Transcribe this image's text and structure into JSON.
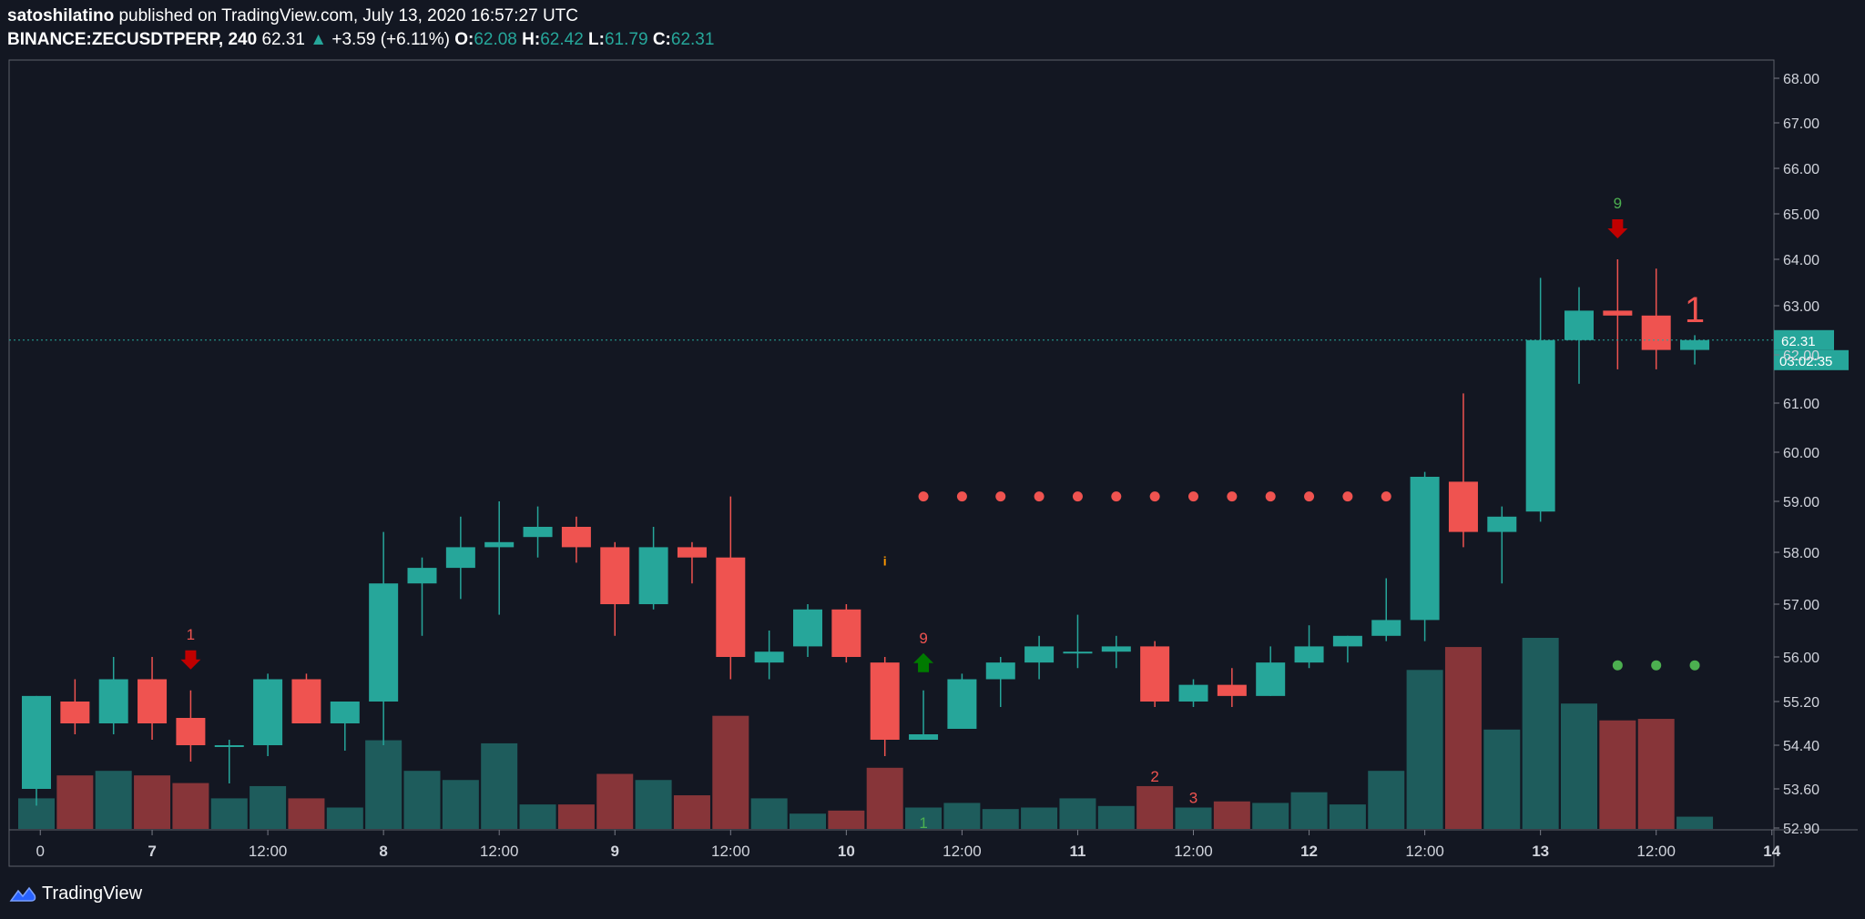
{
  "header": {
    "publisher": "satoshilatino",
    "published_text": "published on TradingView.com, July 13, 2020 16:57:27 UTC",
    "symbol": "BINANCE:ZECUSDTPERP, 240",
    "last": "62.31",
    "change": "+3.59 (+6.11%)",
    "o_label": "O:",
    "o_value": "62.08",
    "h_label": "H:",
    "h_value": "62.42",
    "l_label": "L:",
    "l_value": "61.79",
    "c_label": "C:",
    "c_value": "62.31"
  },
  "colors": {
    "background": "#131722",
    "up": "#26a69a",
    "down": "#ef5350",
    "up_volume": "#1e5c5c",
    "down_volume": "#873539",
    "price_line": "#26a69a",
    "grid_border": "#5d606b",
    "sell_arrow": "#c00000",
    "buy_arrow": "#007a00",
    "td_green": "#4caf50",
    "td_red": "#ef5350",
    "info_marker": "#ff9800"
  },
  "chart_data": {
    "type": "candlestick",
    "timeframe": "240",
    "y_ticks": [
      "68.00",
      "67.00",
      "66.00",
      "65.00",
      "64.00",
      "63.00",
      "62.00",
      "61.00",
      "60.00",
      "59.00",
      "58.00",
      "57.00",
      "56.00",
      "55.20",
      "54.40",
      "53.60",
      "52.90"
    ],
    "x_labels": [
      {
        "label": "0",
        "t": 0.1
      },
      {
        "label": "7",
        "t": 3
      },
      {
        "label": "12:00",
        "t": 6
      },
      {
        "label": "8",
        "t": 9
      },
      {
        "label": "12:00",
        "t": 12
      },
      {
        "label": "9",
        "t": 15
      },
      {
        "label": "12:00",
        "t": 18
      },
      {
        "label": "10",
        "t": 21
      },
      {
        "label": "12:00",
        "t": 24
      },
      {
        "label": "11",
        "t": 27
      },
      {
        "label": "12:00",
        "t": 30
      },
      {
        "label": "12",
        "t": 33
      },
      {
        "label": "12:00",
        "t": 36
      },
      {
        "label": "13",
        "t": 39
      },
      {
        "label": "12:00",
        "t": 42
      },
      {
        "label": "14",
        "t": 45
      }
    ],
    "candles": [
      {
        "t": 0,
        "o": 53.6,
        "h": 55.3,
        "l": 53.3,
        "c": 55.3,
        "v": 20
      },
      {
        "t": 1,
        "o": 55.2,
        "h": 55.6,
        "l": 54.6,
        "c": 54.8,
        "v": 35
      },
      {
        "t": 2,
        "o": 54.8,
        "h": 56.0,
        "l": 54.6,
        "c": 55.6,
        "v": 38
      },
      {
        "t": 3,
        "o": 55.6,
        "h": 56.0,
        "l": 54.5,
        "c": 54.8,
        "v": 35
      },
      {
        "t": 4,
        "o": 54.9,
        "h": 55.4,
        "l": 54.1,
        "c": 54.4,
        "v": 30
      },
      {
        "t": 5,
        "o": 54.4,
        "h": 54.5,
        "l": 53.7,
        "c": 54.4,
        "v": 20
      },
      {
        "t": 6,
        "o": 54.4,
        "h": 55.7,
        "l": 54.2,
        "c": 55.6,
        "v": 28
      },
      {
        "t": 7,
        "o": 55.6,
        "h": 55.7,
        "l": 54.8,
        "c": 54.8,
        "v": 20
      },
      {
        "t": 8,
        "o": 54.8,
        "h": 55.2,
        "l": 54.3,
        "c": 55.2,
        "v": 14
      },
      {
        "t": 9,
        "o": 55.2,
        "h": 58.4,
        "l": 54.4,
        "c": 57.4,
        "v": 58
      },
      {
        "t": 10,
        "o": 57.4,
        "h": 57.9,
        "l": 56.4,
        "c": 57.7,
        "v": 38
      },
      {
        "t": 11,
        "o": 57.7,
        "h": 58.7,
        "l": 57.1,
        "c": 58.1,
        "v": 32
      },
      {
        "t": 12,
        "o": 58.1,
        "h": 59.0,
        "l": 56.8,
        "c": 58.2,
        "v": 56
      },
      {
        "t": 13,
        "o": 58.3,
        "h": 58.9,
        "l": 57.9,
        "c": 58.5,
        "v": 16
      },
      {
        "t": 14,
        "o": 58.5,
        "h": 58.7,
        "l": 57.8,
        "c": 58.1,
        "v": 16
      },
      {
        "t": 15,
        "o": 58.1,
        "h": 58.2,
        "l": 56.4,
        "c": 57.0,
        "v": 36
      },
      {
        "t": 16,
        "o": 57.0,
        "h": 58.5,
        "l": 56.9,
        "c": 58.1,
        "v": 32
      },
      {
        "t": 17,
        "o": 58.1,
        "h": 58.2,
        "l": 57.4,
        "c": 57.9,
        "v": 22
      },
      {
        "t": 18,
        "o": 57.9,
        "h": 59.1,
        "l": 55.6,
        "c": 56.0,
        "v": 74
      },
      {
        "t": 19,
        "o": 55.9,
        "h": 56.5,
        "l": 55.6,
        "c": 56.1,
        "v": 20
      },
      {
        "t": 20,
        "o": 56.2,
        "h": 57.0,
        "l": 56.0,
        "c": 56.9,
        "v": 10
      },
      {
        "t": 21,
        "o": 56.9,
        "h": 57.0,
        "l": 55.9,
        "c": 56.0,
        "v": 12
      },
      {
        "t": 22,
        "o": 55.9,
        "h": 56.0,
        "l": 54.2,
        "c": 54.5,
        "v": 40
      },
      {
        "t": 23,
        "o": 54.5,
        "h": 55.4,
        "l": 54.5,
        "c": 54.6,
        "v": 14
      },
      {
        "t": 24,
        "o": 54.7,
        "h": 55.7,
        "l": 54.7,
        "c": 55.6,
        "v": 17
      },
      {
        "t": 25,
        "o": 55.6,
        "h": 56.0,
        "l": 55.1,
        "c": 55.9,
        "v": 13
      },
      {
        "t": 26,
        "o": 55.9,
        "h": 56.4,
        "l": 55.6,
        "c": 56.2,
        "v": 14
      },
      {
        "t": 27,
        "o": 56.1,
        "h": 56.8,
        "l": 55.8,
        "c": 56.1,
        "v": 20
      },
      {
        "t": 28,
        "o": 56.1,
        "h": 56.4,
        "l": 55.8,
        "c": 56.2,
        "v": 15
      },
      {
        "t": 29,
        "o": 56.2,
        "h": 56.3,
        "l": 55.1,
        "c": 55.2,
        "v": 28
      },
      {
        "t": 30,
        "o": 55.2,
        "h": 55.6,
        "l": 55.1,
        "c": 55.5,
        "v": 14
      },
      {
        "t": 31,
        "o": 55.5,
        "h": 55.8,
        "l": 55.1,
        "c": 55.3,
        "v": 18
      },
      {
        "t": 32,
        "o": 55.3,
        "h": 56.2,
        "l": 55.3,
        "c": 55.9,
        "v": 17
      },
      {
        "t": 33,
        "o": 55.9,
        "h": 56.6,
        "l": 55.8,
        "c": 56.2,
        "v": 24
      },
      {
        "t": 34,
        "o": 56.2,
        "h": 56.4,
        "l": 55.9,
        "c": 56.4,
        "v": 16
      },
      {
        "t": 35,
        "o": 56.4,
        "h": 57.5,
        "l": 56.3,
        "c": 56.7,
        "v": 38
      },
      {
        "t": 36,
        "o": 56.7,
        "h": 59.6,
        "l": 56.3,
        "c": 59.5,
        "v": 104
      },
      {
        "t": 37,
        "o": 59.4,
        "h": 61.2,
        "l": 58.1,
        "c": 58.4,
        "v": 119
      },
      {
        "t": 38,
        "o": 58.4,
        "h": 58.9,
        "l": 57.4,
        "c": 58.7,
        "v": 65
      },
      {
        "t": 39,
        "o": 58.8,
        "h": 63.6,
        "l": 58.6,
        "c": 62.3,
        "v": 125
      },
      {
        "t": 40,
        "o": 62.3,
        "h": 63.4,
        "l": 61.4,
        "c": 62.9,
        "v": 82
      },
      {
        "t": 41,
        "o": 62.9,
        "h": 64.0,
        "l": 61.7,
        "c": 62.8,
        "v": 71
      },
      {
        "t": 42,
        "o": 62.8,
        "h": 63.8,
        "l": 61.7,
        "c": 62.1,
        "v": 72
      },
      {
        "t": 43,
        "o": 62.1,
        "h": 62.4,
        "l": 61.8,
        "c": 62.3,
        "v": 8
      }
    ],
    "current_price_label": "62.31",
    "countdown_label": "03:02:35",
    "annotations": {
      "sell_arrows": [
        {
          "t": 4,
          "number": "1"
        },
        {
          "t": 41,
          "number": "9"
        }
      ],
      "buy_arrows": [
        {
          "t": 23,
          "number": "9"
        }
      ],
      "setup_numbers": [
        {
          "t": 43,
          "price": 63.0,
          "text": "1",
          "size": "large",
          "color": "#ef5350"
        },
        {
          "t": 23,
          "text": "1",
          "color": "#4caf50",
          "place": "volume"
        },
        {
          "t": 29,
          "text": "2",
          "color": "#ef5350",
          "place": "volume"
        },
        {
          "t": 30,
          "text": "3",
          "color": "#ef5350",
          "place": "volume"
        }
      ],
      "info_marker": {
        "t": 22,
        "price": 57.85,
        "text": "i"
      },
      "resistance_dots": {
        "price": 59.1,
        "t": [
          23,
          24,
          25,
          26,
          27,
          28,
          29,
          30,
          31,
          32,
          33,
          34,
          35
        ]
      },
      "support_dots": {
        "price": 55.85,
        "t": [
          41,
          42,
          43
        ]
      }
    }
  },
  "footer": {
    "brand": "TradingView"
  }
}
